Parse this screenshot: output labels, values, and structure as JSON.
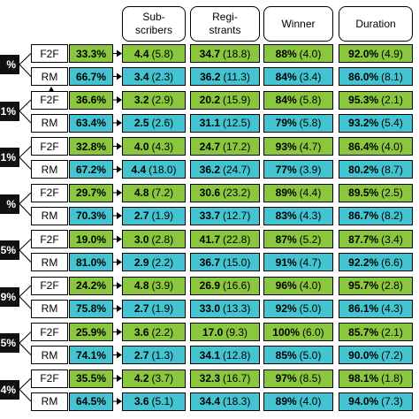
{
  "headers": [
    {
      "line1": "Sub-",
      "line2": "scribers"
    },
    {
      "line1": "Regi-",
      "line2": "strants"
    },
    {
      "line1": "Winner",
      "line2": ""
    },
    {
      "line1": "Duration",
      "line2": ""
    }
  ],
  "groups": [
    {
      "tag": "%",
      "f2f": {
        "label": "F2F",
        "pct": "33.3%",
        "subs": {
          "b": "4.4",
          "r": "(5.8)"
        },
        "reg": {
          "b": "34.7",
          "r": "(18.8)"
        },
        "win": {
          "b": "88%",
          "r": "(4.0)"
        },
        "dur": {
          "b": "92.0%",
          "r": "(4.9)"
        }
      },
      "rm": {
        "label": "RM",
        "pct": "66.7%",
        "subs": {
          "b": "3.4",
          "r": "(2.3)"
        },
        "reg": {
          "b": "36.2",
          "r": "(11.3)"
        },
        "win": {
          "b": "84%",
          "r": "(3.4)"
        },
        "dur": {
          "b": "86.0%",
          "r": "(8.1)"
        }
      }
    },
    {
      "tag": "1%",
      "f2f": {
        "label": "F2F",
        "pct": "36.6%",
        "subs": {
          "b": "3.2",
          "r": "(2.9)"
        },
        "reg": {
          "b": "20.2",
          "r": "(15.9)"
        },
        "win": {
          "b": "84%",
          "r": "(5.8)"
        },
        "dur": {
          "b": "95.3%",
          "r": "(2.1)"
        }
      },
      "rm": {
        "label": "RM",
        "pct": "63.4%",
        "subs": {
          "b": "2.5",
          "r": "(2.6)"
        },
        "reg": {
          "b": "31.1",
          "r": "(12.5)"
        },
        "win": {
          "b": "79%",
          "r": "(5.8)"
        },
        "dur": {
          "b": "93.2%",
          "r": "(5.4)"
        }
      }
    },
    {
      "tag": "1%",
      "f2f": {
        "label": "F2F",
        "pct": "32.8%",
        "subs": {
          "b": "4.0",
          "r": "(4.3)"
        },
        "reg": {
          "b": "24.7",
          "r": "(17.2)"
        },
        "win": {
          "b": "93%",
          "r": "(4.7)"
        },
        "dur": {
          "b": "86.4%",
          "r": "(4.0)"
        }
      },
      "rm": {
        "label": "RM",
        "pct": "67.2%",
        "subs": {
          "b": "4.4",
          "r": "(18.0)"
        },
        "reg": {
          "b": "36.2",
          "r": "(24.7)"
        },
        "win": {
          "b": "77%",
          "r": "(3.9)"
        },
        "dur": {
          "b": "80.2%",
          "r": "(8.7)"
        }
      }
    },
    {
      "tag": "%",
      "f2f": {
        "label": "F2F",
        "pct": "29.7%",
        "subs": {
          "b": "4.8",
          "r": "(7.2)"
        },
        "reg": {
          "b": "30.6",
          "r": "(23.2)"
        },
        "win": {
          "b": "89%",
          "r": "(4.4)"
        },
        "dur": {
          "b": "89.5%",
          "r": "(2.5)"
        }
      },
      "rm": {
        "label": "RM",
        "pct": "70.3%",
        "subs": {
          "b": "2.7",
          "r": "(1.9)"
        },
        "reg": {
          "b": "33.7",
          "r": "(12.7)"
        },
        "win": {
          "b": "83%",
          "r": "(4.3)"
        },
        "dur": {
          "b": "86.7%",
          "r": "(8.2)"
        }
      }
    },
    {
      "tag": "5%",
      "f2f": {
        "label": "F2F",
        "pct": "19.0%",
        "subs": {
          "b": "3.0",
          "r": "(2.8)"
        },
        "reg": {
          "b": "41.7",
          "r": "(22.8)"
        },
        "win": {
          "b": "87%",
          "r": "(5.2)"
        },
        "dur": {
          "b": "87.7%",
          "r": "(3.4)"
        }
      },
      "rm": {
        "label": "RM",
        "pct": "81.0%",
        "subs": {
          "b": "2.9",
          "r": "(2.2)"
        },
        "reg": {
          "b": "36.7",
          "r": "(15.0)"
        },
        "win": {
          "b": "91%",
          "r": "(4.7)"
        },
        "dur": {
          "b": "92.2%",
          "r": "(6.6)"
        }
      }
    },
    {
      "tag": "9%",
      "f2f": {
        "label": "F2F",
        "pct": "24.2%",
        "subs": {
          "b": "4.8",
          "r": "(3.9)"
        },
        "reg": {
          "b": "26.9",
          "r": "(16.6)"
        },
        "win": {
          "b": "96%",
          "r": "(4.0)"
        },
        "dur": {
          "b": "95.7%",
          "r": "(2.8)"
        }
      },
      "rm": {
        "label": "RM",
        "pct": "75.8%",
        "subs": {
          "b": "2.7",
          "r": "(1.9)"
        },
        "reg": {
          "b": "33.0",
          "r": "(13.3)"
        },
        "win": {
          "b": "92%",
          "r": "(5.0)"
        },
        "dur": {
          "b": "86.1%",
          "r": "(4.3)"
        }
      }
    },
    {
      "tag": "5%",
      "f2f": {
        "label": "F2F",
        "pct": "25.9%",
        "subs": {
          "b": "3.6",
          "r": "(2.2)"
        },
        "reg": {
          "b": "17.0",
          "r": "(9.3)"
        },
        "win": {
          "b": "100%",
          "r": "(6.0)"
        },
        "dur": {
          "b": "85.7%",
          "r": "(2.1)"
        }
      },
      "rm": {
        "label": "RM",
        "pct": "74.1%",
        "subs": {
          "b": "2.7",
          "r": "(1.3)"
        },
        "reg": {
          "b": "34.1",
          "r": "(12.8)"
        },
        "win": {
          "b": "85%",
          "r": "(5.0)"
        },
        "dur": {
          "b": "90.0%",
          "r": "(7.2)"
        }
      }
    },
    {
      "tag": "4%",
      "f2f": {
        "label": "F2F",
        "pct": "35.5%",
        "subs": {
          "b": "4.2",
          "r": "(3.7)"
        },
        "reg": {
          "b": "32.3",
          "r": "(16.7)"
        },
        "win": {
          "b": "97%",
          "r": "(8.5)"
        },
        "dur": {
          "b": "98.1%",
          "r": "(1.8)"
        }
      },
      "rm": {
        "label": "RM",
        "pct": "64.5%",
        "subs": {
          "b": "3.6",
          "r": "(5.1)"
        },
        "reg": {
          "b": "34.4",
          "r": "(18.3)"
        },
        "win": {
          "b": "89%",
          "r": "(4.0)"
        },
        "dur": {
          "b": "94.0%",
          "r": "(7.3)"
        }
      }
    }
  ],
  "colors": {
    "f2f": "#8bc63f",
    "rm": "#44c4d0"
  }
}
